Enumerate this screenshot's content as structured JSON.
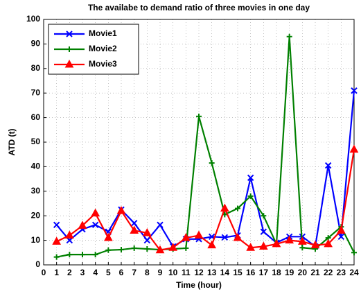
{
  "chart_data": {
    "type": "line",
    "title": "The availabe to demand ratio of three movies in one day",
    "x_label": "Time (hour)",
    "y_label": "ATD (t)",
    "x": [
      1,
      2,
      3,
      4,
      5,
      6,
      7,
      8,
      9,
      10,
      11,
      12,
      13,
      14,
      15,
      16,
      17,
      18,
      19,
      20,
      21,
      22,
      23,
      24
    ],
    "series": [
      {
        "name": "Movie1",
        "color": "#0000ff",
        "marker": "x",
        "values": [
          16.3,
          10,
          14.5,
          16.3,
          13.5,
          22.5,
          17,
          10,
          16.3,
          7.5,
          10.5,
          10.5,
          11.5,
          11.2,
          12,
          35.5,
          13.5,
          9,
          11.5,
          11.5,
          7.5,
          40.5,
          11.5,
          71
        ]
      },
      {
        "name": "Movie2",
        "color": "#008000",
        "marker": "+",
        "values": [
          3.2,
          4.2,
          4.2,
          4.2,
          6,
          6.2,
          6.8,
          6.5,
          6.2,
          6.5,
          6.8,
          60.5,
          41.5,
          20.5,
          23,
          28,
          20,
          8.5,
          93,
          7,
          6.5,
          11,
          15.5,
          5
        ]
      },
      {
        "name": "Movie3",
        "color": "#ff0000",
        "marker": "^",
        "values": [
          9.5,
          12,
          16,
          21,
          11,
          22,
          14,
          13,
          6,
          7,
          11,
          12,
          8,
          23,
          11,
          7,
          7.5,
          8.5,
          10,
          9.5,
          8,
          8.5,
          14,
          47
        ]
      }
    ],
    "xlim": [
      0,
      24
    ],
    "xticks": [
      0,
      1,
      2,
      3,
      4,
      5,
      6,
      7,
      8,
      9,
      10,
      11,
      12,
      13,
      14,
      15,
      16,
      17,
      18,
      19,
      20,
      21,
      22,
      23,
      24
    ],
    "ylim": [
      0,
      100
    ],
    "yticks": [
      0,
      10,
      20,
      30,
      40,
      50,
      60,
      70,
      80,
      90,
      100
    ],
    "grid": true,
    "legend": "upper-left"
  }
}
